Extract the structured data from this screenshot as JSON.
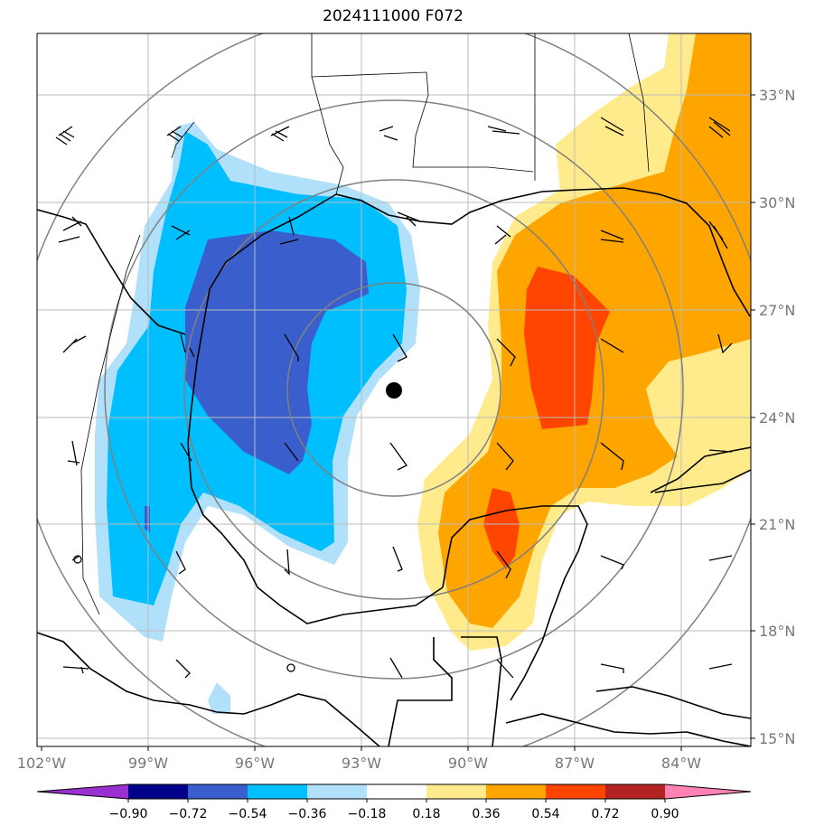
{
  "title": "2024111000 F072",
  "lon_labels": [
    "102°W",
    "99°W",
    "96°W",
    "93°W",
    "90°W",
    "87°W",
    "84°W"
  ],
  "lat_labels": [
    "33°N",
    "30°N",
    "27°N",
    "24°N",
    "21°N",
    "18°N",
    "15°N"
  ],
  "colorbar": {
    "ticks": [
      "−0.90",
      "−0.72",
      "−0.54",
      "−0.36",
      "−0.18",
      "0.18",
      "0.36",
      "0.54",
      "0.72",
      "0.90"
    ],
    "colors": [
      "#9b30d0",
      "#00008b",
      "#3a5fcd",
      "#00bfff",
      "#b0e0fa",
      "#ffffff",
      "#ffeb8c",
      "#ffa500",
      "#ff4500",
      "#b22222",
      "#ff82b4"
    ]
  },
  "storm_center_marker": "black-dot"
}
